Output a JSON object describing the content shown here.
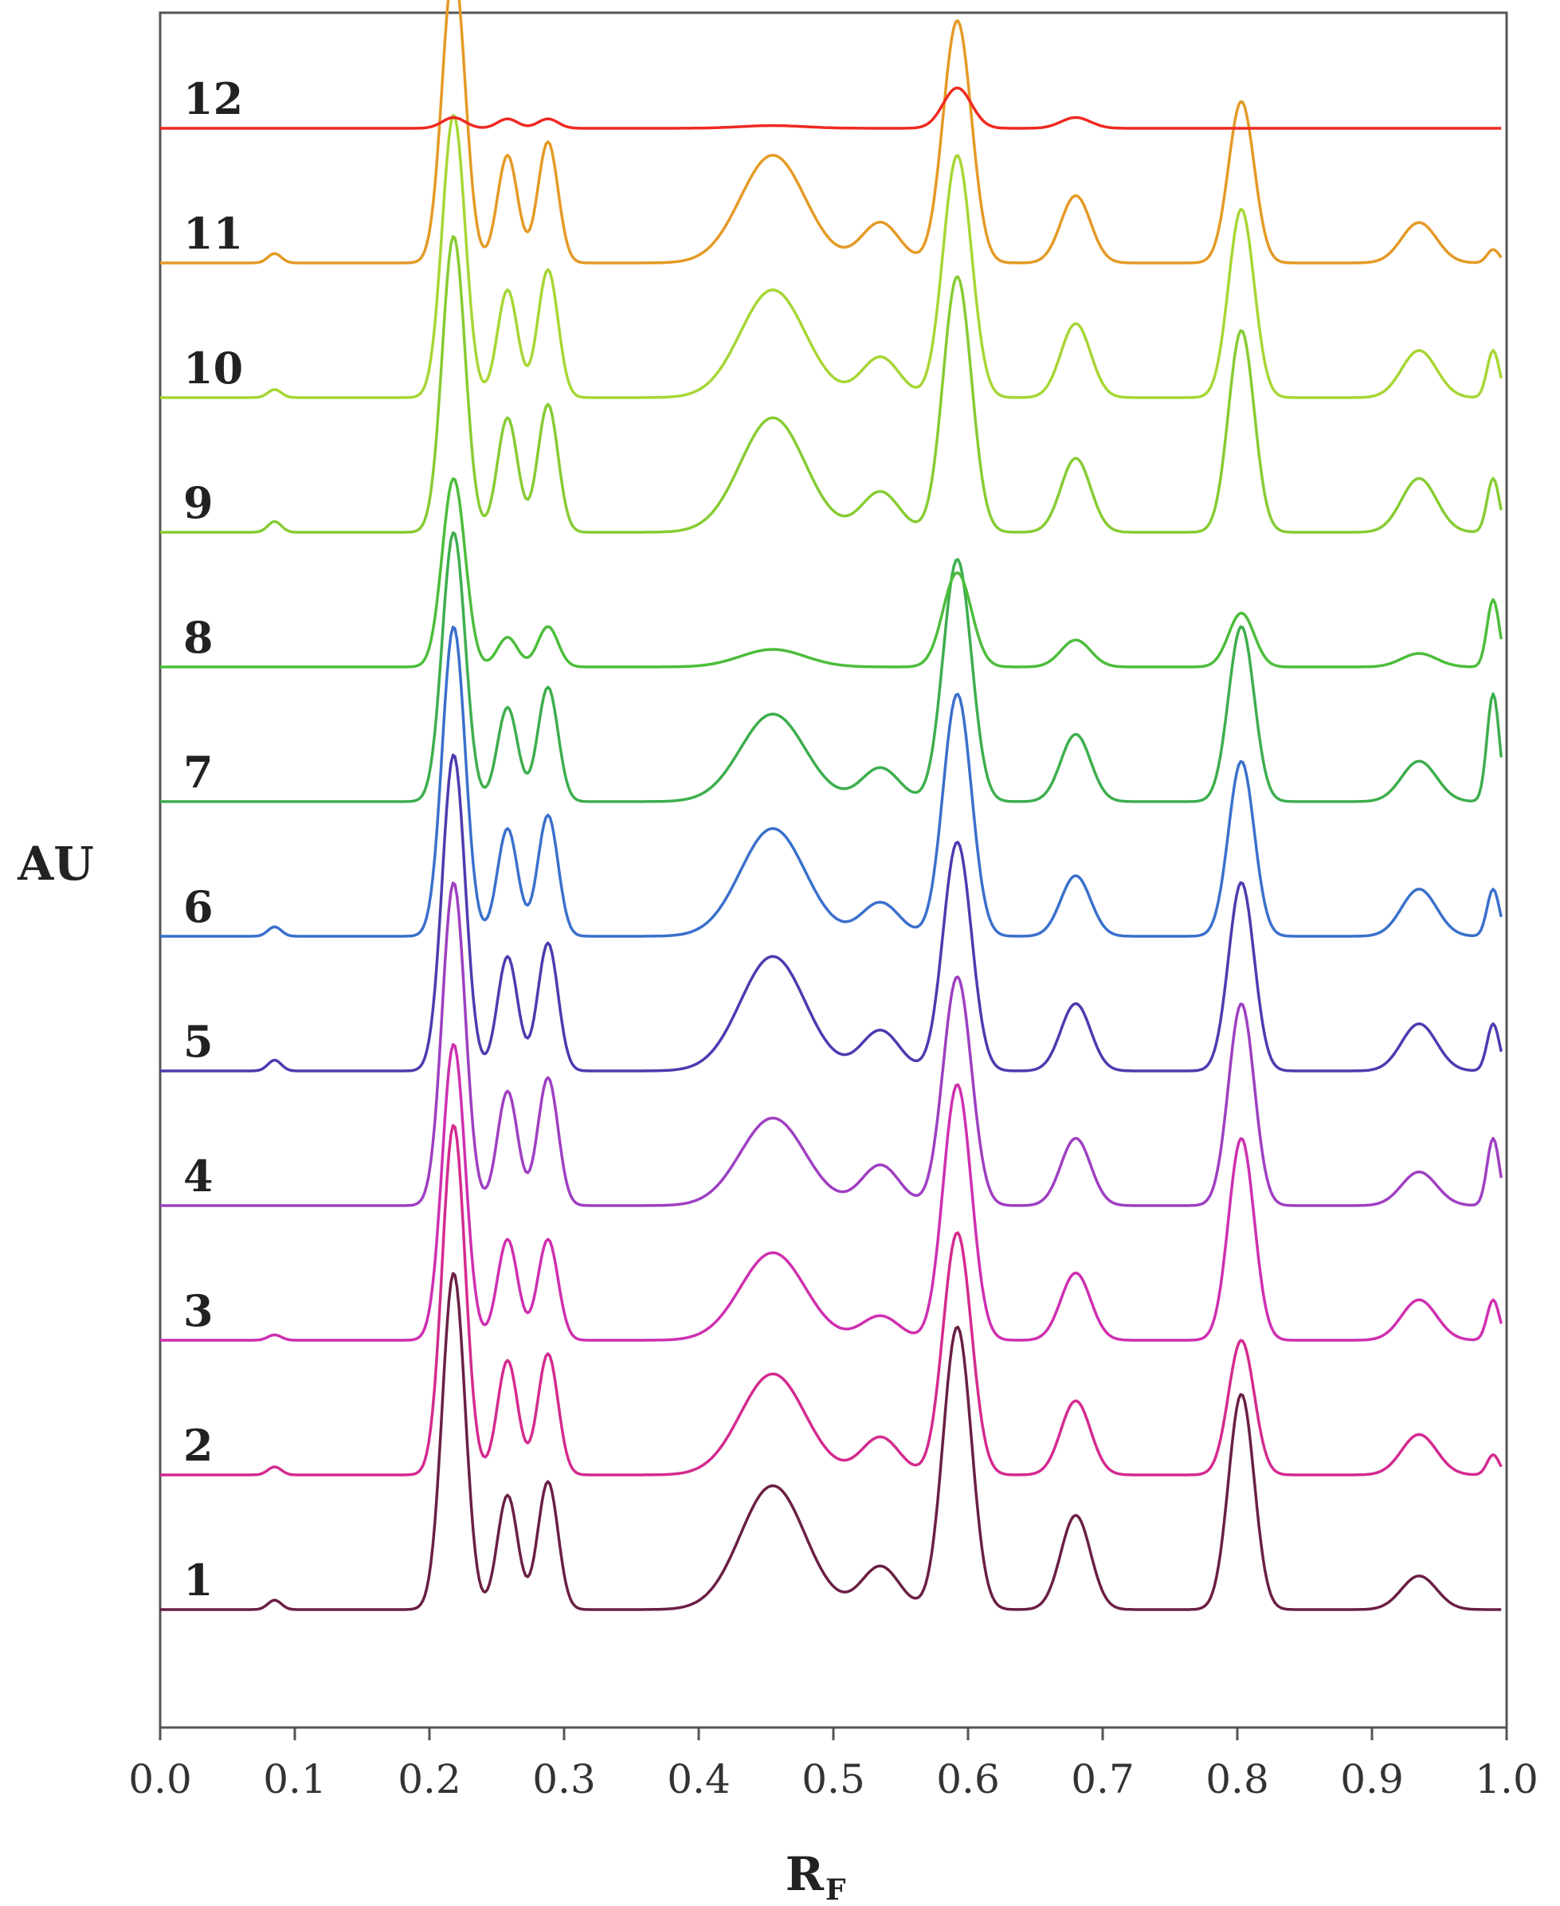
{
  "chart_data": {
    "type": "line",
    "xlabel": "R",
    "xlabel_subscript": "F",
    "ylabel": "AU",
    "xlim": [
      0.0,
      1.0
    ],
    "xticks": [
      "0.0",
      "0.1",
      "0.2",
      "0.3",
      "0.4",
      "0.5",
      "0.6",
      "0.7",
      "0.8",
      "0.9",
      "1.0"
    ],
    "layout": "stacked-offset",
    "legend": "none; each trace labeled at left",
    "grid": false,
    "peaks_rf": [
      0.085,
      0.218,
      0.258,
      0.288,
      0.455,
      0.535,
      0.592,
      0.68,
      0.803,
      0.935,
      0.99
    ],
    "series": [
      {
        "label": "1",
        "color": "#6b1f45",
        "baseline_au": 0,
        "peak_heights": [
          0.07,
          2.5,
          0.85,
          0.95,
          0.92,
          0.32,
          2.1,
          0.7,
          1.6,
          0.25,
          0.0
        ]
      },
      {
        "label": "2",
        "color": "#d42a90",
        "baseline_au": 1,
        "peak_heights": [
          0.06,
          2.6,
          0.85,
          0.9,
          0.75,
          0.28,
          1.8,
          0.55,
          1.0,
          0.3,
          0.15
        ]
      },
      {
        "label": "3",
        "color": "#cf2fb0",
        "baseline_au": 2,
        "peak_heights": [
          0.04,
          2.2,
          0.75,
          0.75,
          0.65,
          0.18,
          1.9,
          0.5,
          1.5,
          0.3,
          0.3
        ]
      },
      {
        "label": "4",
        "color": "#9e3fc2",
        "baseline_au": 3,
        "peak_heights": [
          0.0,
          2.4,
          0.85,
          0.95,
          0.65,
          0.3,
          1.7,
          0.5,
          1.5,
          0.25,
          0.5
        ]
      },
      {
        "label": "5",
        "color": "#4b3cb0",
        "baseline_au": 4,
        "peak_heights": [
          0.08,
          2.35,
          0.85,
          0.95,
          0.85,
          0.3,
          1.7,
          0.5,
          1.4,
          0.35,
          0.35
        ]
      },
      {
        "label": "6",
        "color": "#3a70cc",
        "baseline_au": 5,
        "peak_heights": [
          0.07,
          2.3,
          0.8,
          0.9,
          0.8,
          0.25,
          1.8,
          0.45,
          1.3,
          0.35,
          0.35
        ]
      },
      {
        "label": "7",
        "color": "#3dae4d",
        "baseline_au": 6,
        "peak_heights": [
          0.0,
          2.0,
          0.7,
          0.85,
          0.65,
          0.25,
          1.8,
          0.5,
          1.3,
          0.3,
          0.8
        ]
      },
      {
        "label": "8",
        "color": "#4cbd3b",
        "baseline_au": 7,
        "peak_heights": [
          0.0,
          1.4,
          0.22,
          0.3,
          0.13,
          0.0,
          0.7,
          0.2,
          0.4,
          0.1,
          0.5
        ]
      },
      {
        "label": "9",
        "color": "#86cc33",
        "baseline_au": 8,
        "peak_heights": [
          0.08,
          2.2,
          0.85,
          0.95,
          0.85,
          0.3,
          1.9,
          0.55,
          1.5,
          0.4,
          0.4
        ]
      },
      {
        "label": "10",
        "color": "#a7d635",
        "baseline_au": 9,
        "peak_heights": [
          0.06,
          2.1,
          0.8,
          0.95,
          0.8,
          0.3,
          1.8,
          0.55,
          1.4,
          0.35,
          0.35
        ]
      },
      {
        "label": "11",
        "color": "#e49a26",
        "baseline_au": 10,
        "peak_heights": [
          0.07,
          2.2,
          0.8,
          0.9,
          0.8,
          0.3,
          1.8,
          0.5,
          1.2,
          0.3,
          0.1
        ]
      },
      {
        "label": "12",
        "color": "#ee2a22",
        "baseline_au": 11,
        "peak_heights": [
          0.0,
          0.08,
          0.07,
          0.07,
          0.02,
          0.0,
          0.3,
          0.08,
          0.0,
          0.0,
          0.0
        ]
      }
    ]
  }
}
